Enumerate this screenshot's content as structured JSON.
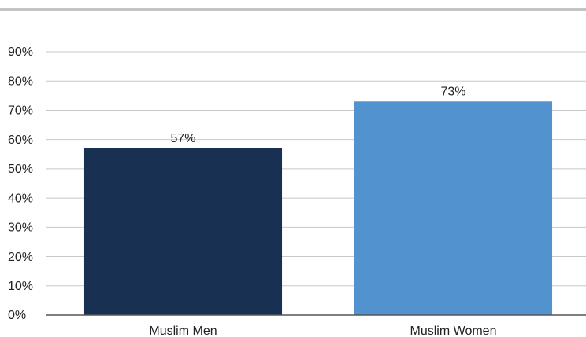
{
  "chart_data": {
    "type": "bar",
    "categories": [
      "Muslim Men",
      "Muslim Women"
    ],
    "values": [
      57,
      73
    ],
    "value_labels": [
      "57%",
      "73%"
    ],
    "colors": [
      "#183153",
      "#5192cf"
    ],
    "ylim": [
      0,
      90
    ],
    "yticks": [
      {
        "value": 0,
        "label": "0%"
      },
      {
        "value": 10,
        "label": "10%"
      },
      {
        "value": 20,
        "label": "20%"
      },
      {
        "value": 30,
        "label": "30%"
      },
      {
        "value": 40,
        "label": "40%"
      },
      {
        "value": 50,
        "label": "50%"
      },
      {
        "value": 60,
        "label": "60%"
      },
      {
        "value": 70,
        "label": "70%"
      },
      {
        "value": 80,
        "label": "80%"
      },
      {
        "value": 90,
        "label": "90%"
      }
    ],
    "grid": true
  }
}
